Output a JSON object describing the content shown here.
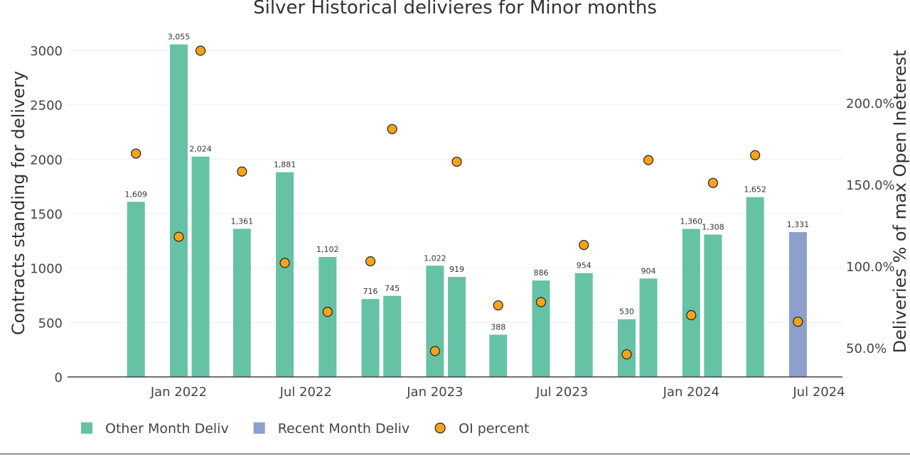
{
  "chart_data": {
    "type": "bar",
    "title": "Silver Historical delivieres for Minor months",
    "ylabel": "Contracts standing for delivery",
    "y2label": "Deliveries % of max Open Ineterest",
    "ylim": [
      0,
      3250
    ],
    "y2lim": [
      20,
      220
    ],
    "yticks": [
      0,
      500,
      1000,
      1500,
      2000,
      2500,
      3000
    ],
    "y2ticks": [
      50,
      100,
      150,
      200
    ],
    "y2tick_labels": [
      "50.0%",
      "100.0%",
      "150.0%",
      "200.0%"
    ],
    "xlim": [
      "2021-09-01",
      "2024-07-01"
    ],
    "xticks": [
      "2022-01-01",
      "2022-07-01",
      "2023-01-01",
      "2023-07-01",
      "2024-01-01",
      "2024-07-01"
    ],
    "xtick_labels": [
      "Jan 2022",
      "Jul 2022",
      "Jan 2023",
      "Jul 2023",
      "Jan 2024",
      "Jul 2024"
    ],
    "grid": true,
    "legend_position": "bottom-left",
    "series": [
      {
        "name": "Other Month Deliv",
        "type": "bar",
        "color": "#66c2a5",
        "x": [
          "2021-11-01",
          "2022-01-01",
          "2022-02-01",
          "2022-04-01",
          "2022-06-01",
          "2022-08-01",
          "2022-10-01",
          "2022-11-01",
          "2023-01-01",
          "2023-02-01",
          "2023-04-01",
          "2023-06-01",
          "2023-08-01",
          "2023-10-01",
          "2023-11-01",
          "2024-01-01",
          "2024-02-01",
          "2024-04-01"
        ],
        "values": [
          1609,
          3055,
          2024,
          1361,
          1881,
          1102,
          716,
          745,
          1022,
          919,
          388,
          886,
          954,
          530,
          904,
          1360,
          1308,
          1652
        ],
        "labels": [
          "1,609",
          "3,055",
          "2,024",
          "1,361",
          "1,881",
          "1,102",
          "716",
          "745",
          "1,022",
          "919",
          "388",
          "886",
          "954",
          "530",
          "904",
          "1,360",
          "1,308",
          "1,652"
        ]
      },
      {
        "name": "Recent Month Deliv",
        "type": "bar",
        "color": "#8da0cb",
        "x": [
          "2024-06-01"
        ],
        "values": [
          1331
        ],
        "labels": [
          "1,331"
        ]
      },
      {
        "name": "OI percent",
        "type": "scatter",
        "axis": "y2",
        "color": "#f5a31a",
        "x": [
          "2021-11-01",
          "2022-01-01",
          "2022-02-01",
          "2022-04-01",
          "2022-06-01",
          "2022-08-01",
          "2022-10-01",
          "2022-11-01",
          "2023-01-01",
          "2023-02-01",
          "2023-04-01",
          "2023-06-01",
          "2023-08-01",
          "2023-10-01",
          "2023-11-01",
          "2024-01-01",
          "2024-02-01",
          "2024-04-01",
          "2024-06-01"
        ],
        "values": [
          169,
          118,
          232,
          158,
          102,
          72,
          103,
          184,
          48,
          164,
          76,
          78,
          113,
          46,
          165,
          70,
          151,
          168,
          66
        ]
      }
    ]
  }
}
